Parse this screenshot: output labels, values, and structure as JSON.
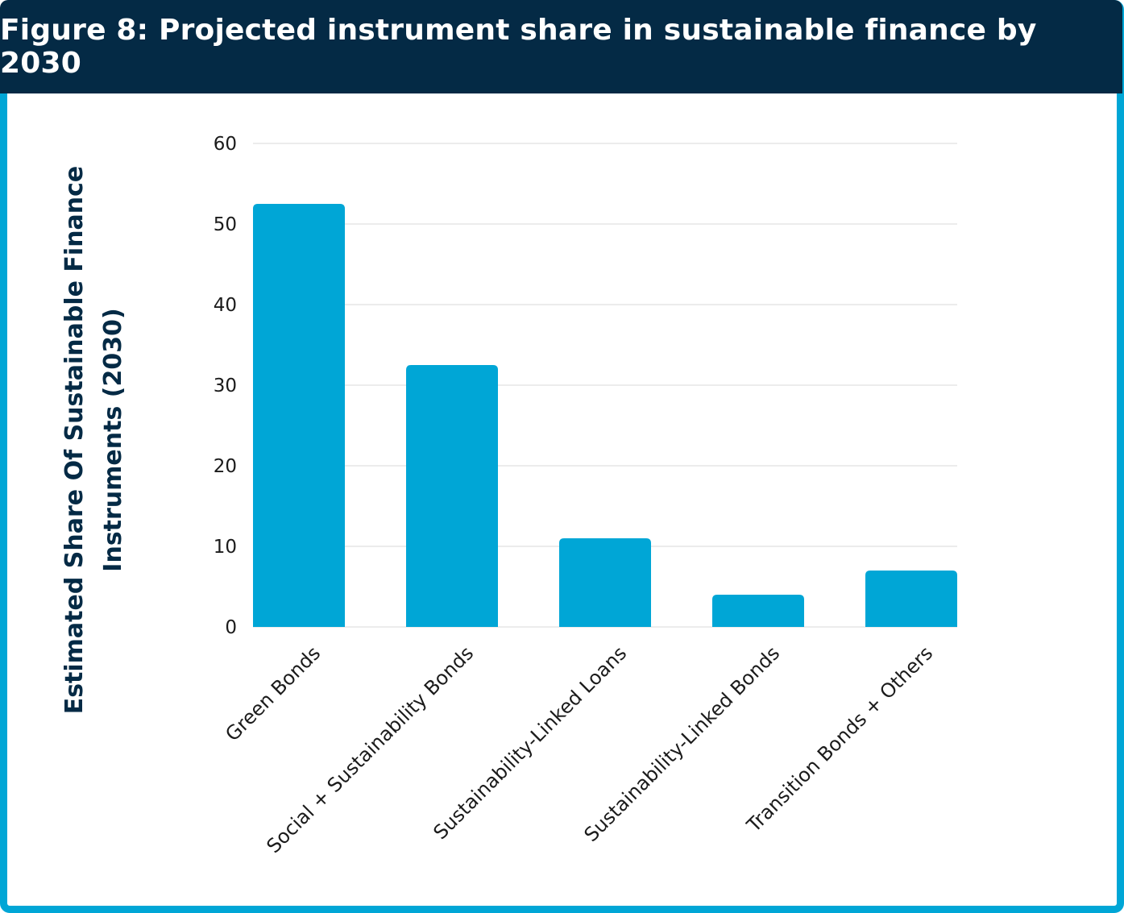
{
  "figure": {
    "title": "Figure 8: Projected instrument share in sustainable finance by 2030"
  },
  "colors": {
    "bar": "#00a6d6",
    "header_bg": "#042a45",
    "frame": "#00a6d6",
    "axis_title": "#042a45",
    "grid": "#d9d9d9"
  },
  "chart_data": {
    "type": "bar",
    "title": "Figure 8: Projected instrument share in sustainable finance by 2030",
    "categories": [
      "Green Bonds",
      "Social + Sustainability Bonds",
      "Sustainability-Linked Loans",
      "Sustainability-Linked Bonds",
      "Transition Bonds + Others"
    ],
    "values": [
      52.5,
      32.5,
      11,
      4,
      7
    ],
    "xlabel": "",
    "ylabel_lines": [
      "Estimated Share Of Sustainable Finance",
      "Instruments (2030)"
    ],
    "ylim": [
      0,
      60
    ],
    "yticks": [
      0,
      10,
      20,
      30,
      40,
      50,
      60
    ],
    "grid": true,
    "legend": "none"
  }
}
